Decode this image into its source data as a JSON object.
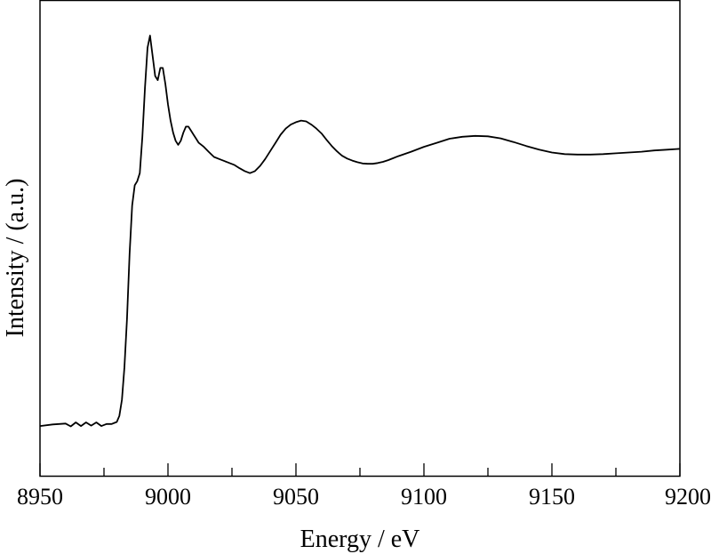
{
  "chart_data": {
    "type": "line",
    "title": "",
    "xlabel": "Energy / eV",
    "ylabel": "Intensity / (a.u.)",
    "xlim": [
      8950,
      9200
    ],
    "ylim": [
      0,
      1
    ],
    "x_ticks": [
      8950,
      9000,
      9050,
      9100,
      9150,
      9200
    ],
    "x_tick_labels": [
      "8950",
      "9000",
      "9050",
      "9100",
      "9150",
      "9200"
    ],
    "y_tick_labels": [],
    "grid": false,
    "legend": "none",
    "series": [
      {
        "color": "#000000",
        "x": [
          8950,
          8955,
          8960,
          8962,
          8964,
          8966,
          8968,
          8970,
          8972,
          8974,
          8976,
          8978,
          8980,
          8981,
          8982,
          8983,
          8984,
          8985,
          8986,
          8987,
          8988,
          8989,
          8990,
          8991,
          8992,
          8993,
          8994,
          8995,
          8996,
          8997,
          8998,
          8999,
          9000,
          9001,
          9002,
          9003,
          9004,
          9005,
          9006,
          9007,
          9008,
          9009,
          9010,
          9011,
          9012,
          9014,
          9016,
          9018,
          9020,
          9022,
          9024,
          9026,
          9028,
          9030,
          9032,
          9034,
          9036,
          9038,
          9040,
          9042,
          9044,
          9046,
          9048,
          9050,
          9052,
          9054,
          9056,
          9058,
          9060,
          9062,
          9064,
          9066,
          9068,
          9070,
          9072,
          9074,
          9076,
          9078,
          9080,
          9082,
          9084,
          9086,
          9088,
          9090,
          9095,
          9100,
          9105,
          9110,
          9115,
          9120,
          9125,
          9130,
          9135,
          9140,
          9145,
          9150,
          9155,
          9160,
          9165,
          9170,
          9175,
          9180,
          9185,
          9190,
          9195,
          9200
        ],
        "y": [
          0.035,
          0.039,
          0.041,
          0.034,
          0.044,
          0.035,
          0.044,
          0.036,
          0.044,
          0.035,
          0.04,
          0.04,
          0.045,
          0.06,
          0.1,
          0.18,
          0.3,
          0.46,
          0.58,
          0.63,
          0.64,
          0.66,
          0.75,
          0.87,
          0.97,
          1.0,
          0.95,
          0.9,
          0.89,
          0.92,
          0.92,
          0.88,
          0.83,
          0.79,
          0.76,
          0.74,
          0.73,
          0.74,
          0.76,
          0.775,
          0.775,
          0.765,
          0.755,
          0.745,
          0.735,
          0.725,
          0.712,
          0.7,
          0.695,
          0.69,
          0.685,
          0.68,
          0.672,
          0.665,
          0.66,
          0.665,
          0.678,
          0.695,
          0.715,
          0.735,
          0.755,
          0.77,
          0.78,
          0.786,
          0.79,
          0.788,
          0.78,
          0.77,
          0.758,
          0.742,
          0.727,
          0.714,
          0.703,
          0.696,
          0.691,
          0.687,
          0.684,
          0.683,
          0.683,
          0.685,
          0.688,
          0.692,
          0.697,
          0.702,
          0.713,
          0.725,
          0.735,
          0.745,
          0.75,
          0.752,
          0.751,
          0.746,
          0.737,
          0.727,
          0.718,
          0.711,
          0.707,
          0.706,
          0.706,
          0.707,
          0.709,
          0.711,
          0.713,
          0.716,
          0.718,
          0.72
        ]
      }
    ]
  }
}
